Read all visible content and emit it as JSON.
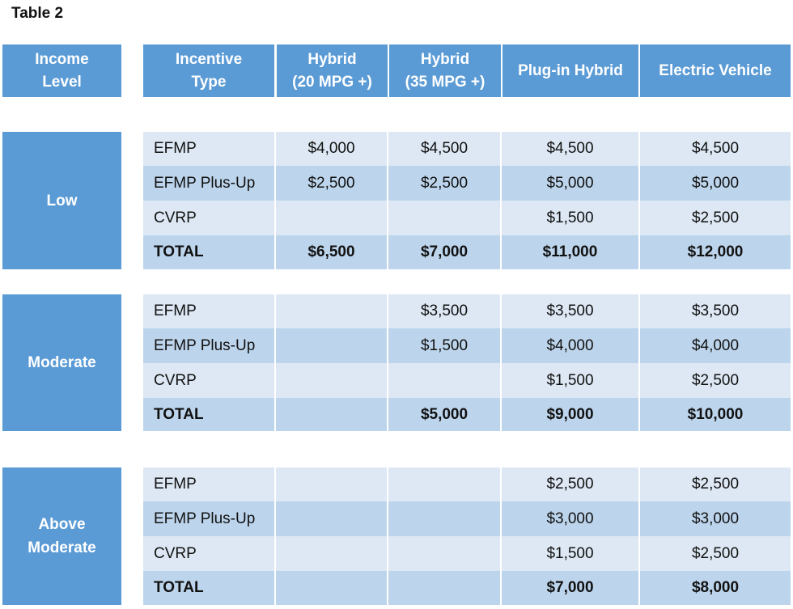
{
  "title": "Table 2",
  "headers": {
    "income_level": [
      "Income",
      "Level"
    ],
    "incentive_type": [
      "Incentive",
      "Type"
    ],
    "hybrid20": [
      "Hybrid",
      "(20 MPG +)"
    ],
    "hybrid35": [
      "Hybrid",
      "(35 MPG +)"
    ],
    "plugin": "Plug-in Hybrid",
    "ev": "Electric Vehicle"
  },
  "groups": [
    {
      "income": [
        "Low"
      ],
      "rows": [
        {
          "type": "EFMP",
          "h20": "$4,000",
          "h35": "$4,500",
          "plugin": "$4,500",
          "ev": "$4,500"
        },
        {
          "type": "EFMP Plus-Up",
          "h20": "$2,500",
          "h35": "$2,500",
          "plugin": "$5,000",
          "ev": "$5,000"
        },
        {
          "type": "CVRP",
          "h20": "",
          "h35": "",
          "plugin": "$1,500",
          "ev": "$2,500"
        },
        {
          "type": "TOTAL",
          "h20": "$6,500",
          "h35": "$7,000",
          "plugin": "$11,000",
          "ev": "$12,000"
        }
      ]
    },
    {
      "income": [
        "Moderate"
      ],
      "rows": [
        {
          "type": "EFMP",
          "h20": "",
          "h35": "$3,500",
          "plugin": "$3,500",
          "ev": "$3,500"
        },
        {
          "type": "EFMP Plus-Up",
          "h20": "",
          "h35": "$1,500",
          "plugin": "$4,000",
          "ev": "$4,000"
        },
        {
          "type": "CVRP",
          "h20": "",
          "h35": "",
          "plugin": "$1,500",
          "ev": "$2,500"
        },
        {
          "type": "TOTAL",
          "h20": "",
          "h35": "$5,000",
          "plugin": "$9,000",
          "ev": "$10,000"
        }
      ]
    },
    {
      "income": [
        "Above",
        "Moderate"
      ],
      "rows": [
        {
          "type": "EFMP",
          "h20": "",
          "h35": "",
          "plugin": "$2,500",
          "ev": "$2,500"
        },
        {
          "type": "EFMP Plus-Up",
          "h20": "",
          "h35": "",
          "plugin": "$3,000",
          "ev": "$3,000"
        },
        {
          "type": "CVRP",
          "h20": "",
          "h35": "",
          "plugin": "$1,500",
          "ev": "$2,500"
        },
        {
          "type": "TOTAL",
          "h20": "",
          "h35": "",
          "plugin": "$7,000",
          "ev": "$8,000"
        }
      ]
    }
  ]
}
